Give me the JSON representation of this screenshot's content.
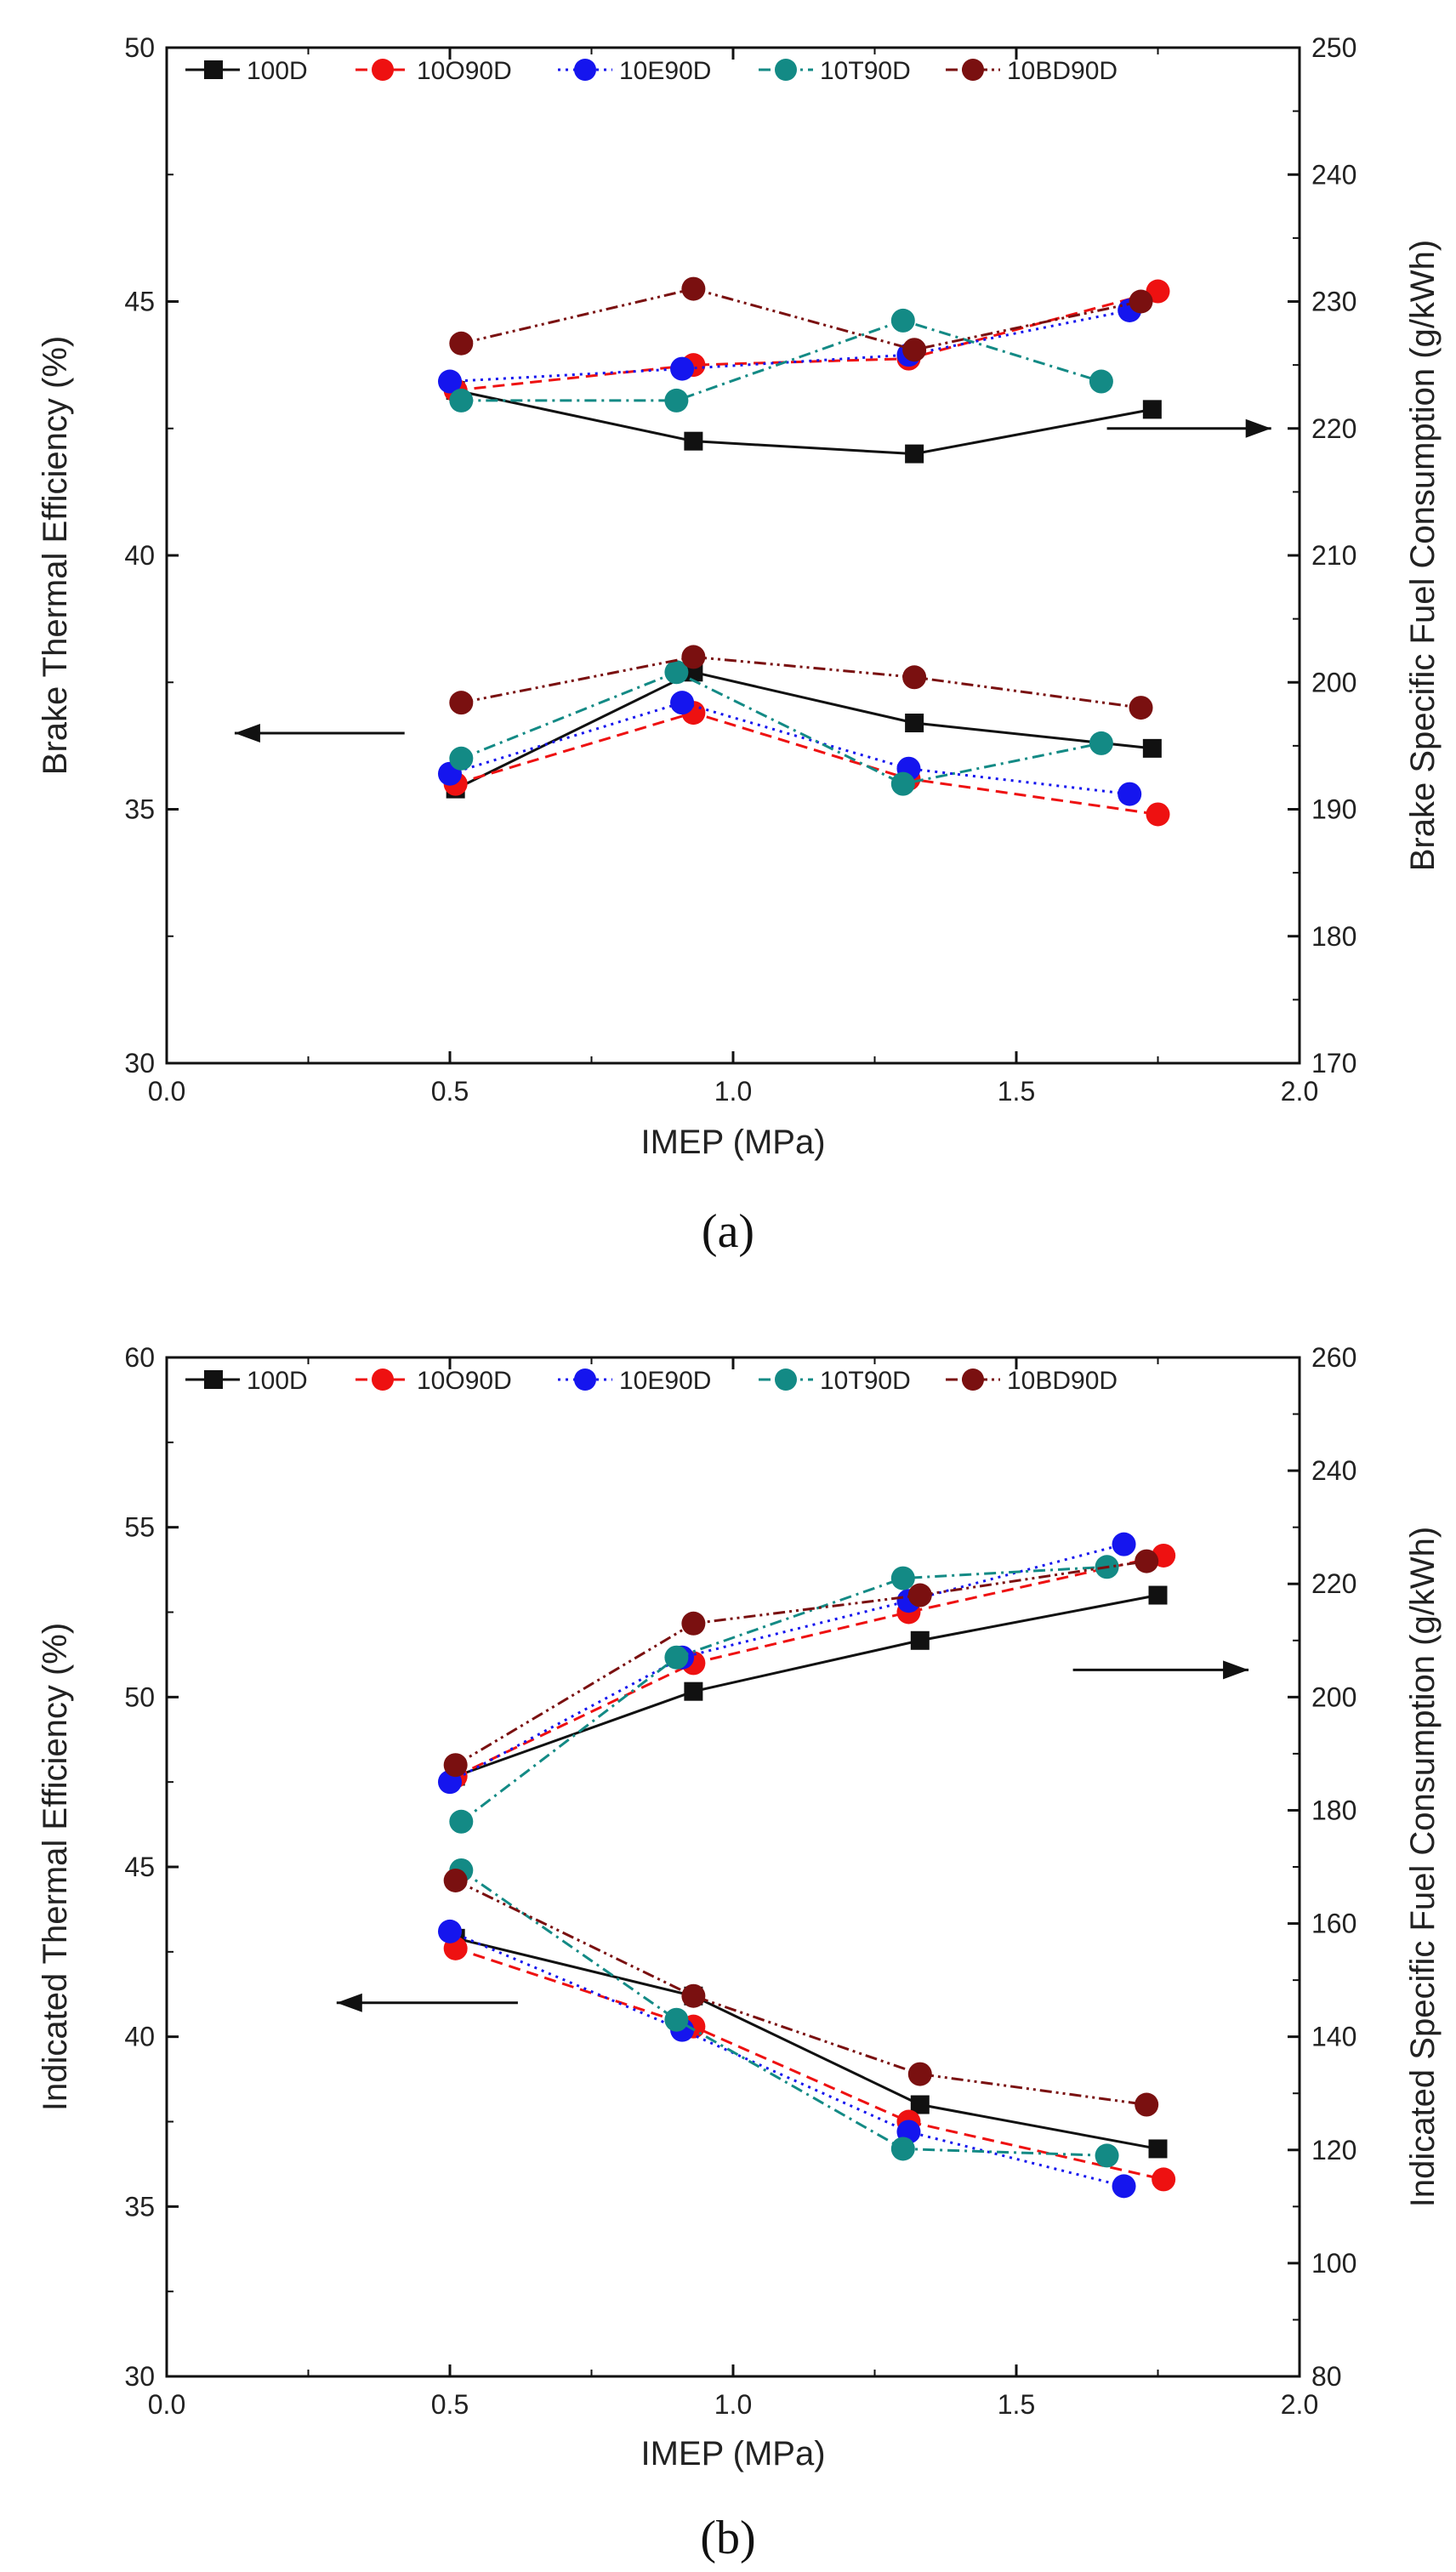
{
  "chart_data": [
    {
      "type": "line",
      "panel_label": "(a)",
      "xlabel": "IMEP (MPa)",
      "ylabel": "Brake Thermal Efficiency (%)",
      "y2label": "Brake Specific Fuel Consumption (g/kWh)",
      "xlim": [
        0.0,
        2.0
      ],
      "ylim": [
        30,
        50
      ],
      "y2lim": [
        170,
        250
      ],
      "xticks": [
        "0.0",
        "0.5",
        "1.0",
        "1.5",
        "2.0"
      ],
      "yticks": [
        "30",
        "35",
        "40",
        "45",
        "50"
      ],
      "y2ticks": [
        "170",
        "180",
        "190",
        "200",
        "210",
        "220",
        "230",
        "240",
        "250"
      ],
      "legend": [
        "100D",
        "10O90D",
        "10E90D",
        "10T90D",
        "10BD90D"
      ],
      "legend_position": "top",
      "arrows": [
        {
          "direction": "left",
          "points_to": "left axis",
          "x_from": 0.42,
          "x_to": 0.12,
          "y": 36.5
        },
        {
          "direction": "right",
          "points_to": "right axis",
          "x_from": 1.66,
          "x_to": 1.95,
          "y": 42.5
        }
      ],
      "series": [
        {
          "name": "100D",
          "axis": "left",
          "color": "#111111",
          "marker": "square",
          "dash": "",
          "x": [
            0.51,
            0.93,
            1.32,
            1.74
          ],
          "y": [
            35.4,
            37.7,
            36.7,
            36.2
          ]
        },
        {
          "name": "10O90D",
          "axis": "left",
          "color": "#ee1111",
          "marker": "circle",
          "dash": "14,8",
          "x": [
            0.51,
            0.93,
            1.31,
            1.75
          ],
          "y": [
            35.5,
            36.9,
            35.6,
            34.9
          ]
        },
        {
          "name": "10E90D",
          "axis": "left",
          "color": "#1515ee",
          "marker": "circle",
          "dash": "3,6",
          "x": [
            0.5,
            0.91,
            1.31,
            1.7
          ],
          "y": [
            35.7,
            37.1,
            35.8,
            35.3
          ]
        },
        {
          "name": "10T90D",
          "axis": "left",
          "color": "#138a85",
          "marker": "circle",
          "dash": "14,6,3,6",
          "x": [
            0.52,
            0.9,
            1.3,
            1.65
          ],
          "y": [
            36.0,
            37.7,
            35.5,
            36.3
          ]
        },
        {
          "name": "10BD90D",
          "axis": "left",
          "color": "#7a1010",
          "marker": "circle",
          "dash": "14,5,3,5,3,5",
          "x": [
            0.52,
            0.93,
            1.32,
            1.72
          ],
          "y": [
            37.1,
            38.0,
            37.6,
            37.0
          ]
        },
        {
          "name": "100D",
          "axis": "right",
          "color": "#111111",
          "marker": "square",
          "dash": "",
          "x": [
            0.51,
            0.93,
            1.32,
            1.74
          ],
          "y": [
            223,
            219,
            218,
            221.5
          ]
        },
        {
          "name": "10O90D",
          "axis": "right",
          "color": "#ee1111",
          "marker": "circle",
          "dash": "14,8",
          "x": [
            0.51,
            0.93,
            1.31,
            1.75
          ],
          "y": [
            223,
            225,
            225.5,
            230.8
          ]
        },
        {
          "name": "10E90D",
          "axis": "right",
          "color": "#1515ee",
          "marker": "circle",
          "dash": "3,6",
          "x": [
            0.5,
            0.91,
            1.31,
            1.7
          ],
          "y": [
            223.7,
            224.7,
            225.8,
            229.3
          ]
        },
        {
          "name": "10T90D",
          "axis": "right",
          "color": "#138a85",
          "marker": "circle",
          "dash": "14,6,3,6",
          "x": [
            0.52,
            0.9,
            1.3,
            1.65
          ],
          "y": [
            222.2,
            222.2,
            228.5,
            223.7
          ]
        },
        {
          "name": "10BD90D",
          "axis": "right",
          "color": "#7a1010",
          "marker": "circle",
          "dash": "14,5,3,5,3,5",
          "x": [
            0.52,
            0.93,
            1.32,
            1.72
          ],
          "y": [
            226.7,
            231,
            226.2,
            230
          ]
        }
      ]
    },
    {
      "type": "line",
      "panel_label": "(b)",
      "xlabel": "IMEP (MPa)",
      "ylabel": "Indicated Thermal Efficiency (%)",
      "y2label": "Indicated Specific Fuel Consumption (g/kWh)",
      "xlim": [
        0.0,
        2.0
      ],
      "ylim": [
        30,
        60
      ],
      "y2lim": [
        80,
        260
      ],
      "xticks": [
        "0.0",
        "0.5",
        "1.0",
        "1.5",
        "2.0"
      ],
      "yticks": [
        "30",
        "35",
        "40",
        "45",
        "50",
        "55",
        "60"
      ],
      "y2ticks": [
        "80",
        "100",
        "120",
        "140",
        "160",
        "180",
        "200",
        "220",
        "240",
        "260"
      ],
      "legend": [
        "100D",
        "10O90D",
        "10E90D",
        "10T90D",
        "10BD90D"
      ],
      "legend_position": "top",
      "arrows": [
        {
          "direction": "left",
          "points_to": "left axis",
          "x_from": 0.62,
          "x_to": 0.3,
          "y": 41.0
        },
        {
          "direction": "right",
          "points_to": "right axis",
          "x_from": 1.6,
          "x_to": 1.91,
          "y": 50.8
        }
      ],
      "series": [
        {
          "name": "100D",
          "axis": "left",
          "color": "#111111",
          "marker": "square",
          "dash": "",
          "x": [
            0.51,
            0.93,
            1.33,
            1.75
          ],
          "y": [
            42.9,
            41.2,
            38.0,
            36.7
          ]
        },
        {
          "name": "10O90D",
          "axis": "left",
          "color": "#ee1111",
          "marker": "circle",
          "dash": "14,8",
          "x": [
            0.51,
            0.93,
            1.31,
            1.76
          ],
          "y": [
            42.6,
            40.3,
            37.5,
            35.8
          ]
        },
        {
          "name": "10E90D",
          "axis": "left",
          "color": "#1515ee",
          "marker": "circle",
          "dash": "3,6",
          "x": [
            0.5,
            0.91,
            1.31,
            1.69
          ],
          "y": [
            43.1,
            40.2,
            37.2,
            35.6
          ]
        },
        {
          "name": "10T90D",
          "axis": "left",
          "color": "#138a85",
          "marker": "circle",
          "dash": "14,6,3,6",
          "x": [
            0.52,
            0.9,
            1.3,
            1.66
          ],
          "y": [
            44.9,
            40.5,
            36.7,
            36.5
          ]
        },
        {
          "name": "10BD90D",
          "axis": "left",
          "color": "#7a1010",
          "marker": "circle",
          "dash": "14,5,3,5,3,5",
          "x": [
            0.51,
            0.93,
            1.33,
            1.73
          ],
          "y": [
            44.6,
            41.2,
            38.9,
            38.0
          ]
        },
        {
          "name": "100D",
          "axis": "right",
          "color": "#111111",
          "marker": "square",
          "dash": "",
          "x": [
            0.51,
            0.93,
            1.33,
            1.75
          ],
          "y": [
            186,
            201,
            210,
            218
          ]
        },
        {
          "name": "10O90D",
          "axis": "right",
          "color": "#ee1111",
          "marker": "circle",
          "dash": "14,8",
          "x": [
            0.51,
            0.93,
            1.31,
            1.76
          ],
          "y": [
            186,
            206,
            215,
            225
          ]
        },
        {
          "name": "10E90D",
          "axis": "right",
          "color": "#1515ee",
          "marker": "circle",
          "dash": "3,6",
          "x": [
            0.5,
            0.91,
            1.31,
            1.69
          ],
          "y": [
            185,
            207,
            217,
            227
          ]
        },
        {
          "name": "10T90D",
          "axis": "right",
          "color": "#138a85",
          "marker": "circle",
          "dash": "14,6,3,6",
          "x": [
            0.52,
            0.9,
            1.3,
            1.66
          ],
          "y": [
            178,
            207,
            221,
            223
          ]
        },
        {
          "name": "10BD90D",
          "axis": "right",
          "color": "#7a1010",
          "marker": "circle",
          "dash": "14,5,3,5,3,5",
          "x": [
            0.51,
            0.93,
            1.33,
            1.73
          ],
          "y": [
            188,
            213,
            218,
            224
          ]
        }
      ]
    }
  ]
}
